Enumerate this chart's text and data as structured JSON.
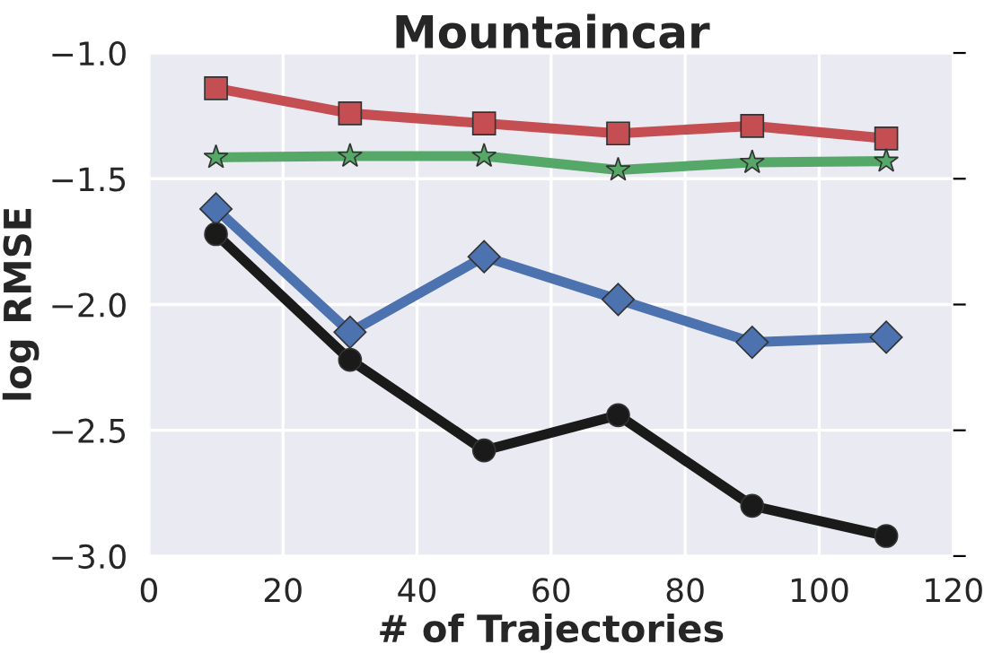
{
  "chart_data": {
    "type": "line",
    "title": "Mountaincar",
    "xlabel": "# of Trajectories",
    "ylabel": "log RMSE",
    "x": [
      10,
      30,
      50,
      70,
      90,
      110
    ],
    "series": [
      {
        "color": "#c44e52",
        "marker": "square",
        "values": [
          -1.14,
          -1.24,
          -1.28,
          -1.32,
          -1.29,
          -1.34
        ]
      },
      {
        "color": "#55a868",
        "marker": "star",
        "values": [
          -1.415,
          -1.41,
          -1.41,
          -1.465,
          -1.435,
          -1.43
        ]
      },
      {
        "color": "#4c72b0",
        "marker": "diamond",
        "values": [
          -1.62,
          -2.11,
          -1.81,
          -1.98,
          -2.15,
          -2.13
        ]
      },
      {
        "color": "#1a1a1a",
        "marker": "circle",
        "values": [
          -1.72,
          -2.22,
          -2.58,
          -2.44,
          -2.8,
          -2.92
        ]
      }
    ],
    "xlim": [
      0,
      120
    ],
    "xticks": [
      0,
      20,
      40,
      60,
      80,
      100,
      120
    ],
    "ylim": [
      -3.0,
      -1.0
    ],
    "yticks": [
      {
        "value": -3.0,
        "label": "−3.0"
      },
      {
        "value": -2.5,
        "label": "−2.5"
      },
      {
        "value": -2.0,
        "label": "−2.0"
      },
      {
        "value": -1.5,
        "label": "−1.5"
      },
      {
        "value": -1.0,
        "label": "−1.0"
      }
    ],
    "grid": true,
    "legend": false,
    "line_style": "solid"
  }
}
